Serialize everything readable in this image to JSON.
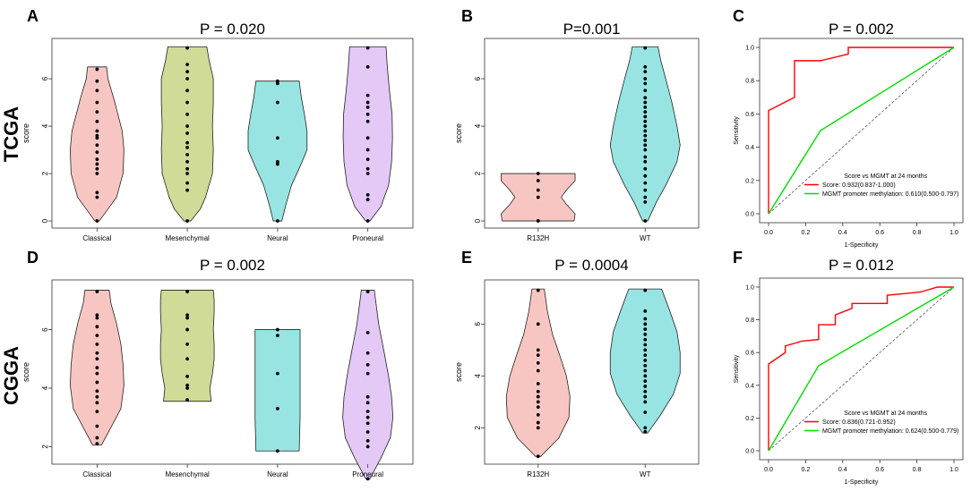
{
  "row_labels": [
    "TCGA",
    "CGGA"
  ],
  "colors": {
    "Classical": "#f8c6c2",
    "Mesenchymal": "#cfdb96",
    "Neural": "#98e4e3",
    "Proneural": "#e4c8f6",
    "R132H": "#f8c6c2",
    "WT": "#98e4e3",
    "roc_score": "#ff0000",
    "roc_mgmt": "#00dd00",
    "diagonal": "#555555"
  },
  "chart_data": [
    {
      "panel": "A",
      "type": "violin",
      "title": "P = 0.020",
      "ylabel": "score",
      "ylim": [
        -0.3,
        7.7
      ],
      "yticks": [
        0,
        2,
        4,
        6
      ],
      "groups": [
        {
          "name": "Classical",
          "min": 0,
          "max": 6.5,
          "shape": [
            [
              0,
              0.05
            ],
            [
              0.5,
              0.25
            ],
            [
              1,
              0.45
            ],
            [
              2,
              0.6
            ],
            [
              3,
              0.62
            ],
            [
              3.8,
              0.58
            ],
            [
              4.5,
              0.48
            ],
            [
              5.2,
              0.38
            ],
            [
              6,
              0.25
            ],
            [
              6.5,
              0.22
            ]
          ],
          "points": [
            0,
            1.0,
            1.2,
            2.0,
            2.2,
            2.4,
            2.6,
            2.9,
            3.2,
            3.5,
            3.6,
            3.8,
            4.2,
            4.6,
            5.0,
            5.5,
            5.9,
            6.4
          ]
        },
        {
          "name": "Mesenchymal",
          "min": 0,
          "max": 7.35,
          "shape": [
            [
              0,
              0.08
            ],
            [
              0.5,
              0.3
            ],
            [
              1,
              0.42
            ],
            [
              2,
              0.58
            ],
            [
              3,
              0.6
            ],
            [
              4,
              0.58
            ],
            [
              5,
              0.6
            ],
            [
              6,
              0.6
            ],
            [
              6.8,
              0.5
            ],
            [
              7.35,
              0.45
            ]
          ],
          "points": [
            0,
            1.3,
            1.6,
            2.0,
            2.2,
            2.5,
            2.8,
            3.1,
            3.3,
            3.7,
            4.0,
            4.5,
            5.0,
            5.5,
            6.0,
            6.3,
            6.6,
            7.3
          ]
        },
        {
          "name": "Neural",
          "min": 0,
          "max": 5.9,
          "shape": [
            [
              0,
              0.1
            ],
            [
              0.6,
              0.18
            ],
            [
              1.5,
              0.32
            ],
            [
              2.3,
              0.52
            ],
            [
              3,
              0.68
            ],
            [
              3.8,
              0.68
            ],
            [
              4.5,
              0.62
            ],
            [
              5.2,
              0.55
            ],
            [
              5.9,
              0.5
            ]
          ],
          "points": [
            0,
            2.4,
            2.5,
            3.5,
            5.0,
            5.8,
            5.9
          ]
        },
        {
          "name": "Proneural",
          "min": 0,
          "max": 7.35,
          "shape": [
            [
              0,
              0.05
            ],
            [
              0.6,
              0.3
            ],
            [
              1.5,
              0.48
            ],
            [
              2.5,
              0.55
            ],
            [
              3.5,
              0.57
            ],
            [
              4.5,
              0.56
            ],
            [
              5.5,
              0.5
            ],
            [
              6.5,
              0.45
            ],
            [
              7.35,
              0.42
            ]
          ],
          "points": [
            0,
            0.9,
            1.1,
            2.0,
            2.2,
            2.6,
            3.0,
            3.5,
            4.2,
            4.5,
            4.8,
            5.0,
            5.3,
            6.5,
            7.3
          ]
        }
      ]
    },
    {
      "panel": "B",
      "type": "violin",
      "title": "P=0.001",
      "ylabel": "score",
      "ylim": [
        -0.3,
        7.7
      ],
      "yticks": [
        0,
        2,
        4,
        6
      ],
      "groups": [
        {
          "name": "R132H",
          "min": 0,
          "max": 2.0,
          "shape": [
            [
              0,
              0.7
            ],
            [
              0.3,
              0.72
            ],
            [
              0.7,
              0.55
            ],
            [
              1,
              0.45
            ],
            [
              1.3,
              0.55
            ],
            [
              1.7,
              0.72
            ],
            [
              2.0,
              0.72
            ]
          ],
          "points": [
            0,
            0,
            1.0,
            1.3,
            1.7,
            2.0
          ]
        },
        {
          "name": "WT",
          "min": 0,
          "max": 7.35,
          "shape": [
            [
              0,
              0.05
            ],
            [
              0.8,
              0.22
            ],
            [
              1.5,
              0.4
            ],
            [
              2.5,
              0.62
            ],
            [
              3.2,
              0.68
            ],
            [
              4,
              0.62
            ],
            [
              5,
              0.52
            ],
            [
              6,
              0.4
            ],
            [
              6.8,
              0.3
            ],
            [
              7.35,
              0.25
            ]
          ],
          "points": [
            0,
            0.8,
            1.0,
            1.3,
            1.6,
            1.9,
            2.2,
            2.5,
            2.7,
            3.0,
            3.2,
            3.4,
            3.6,
            3.8,
            4.0,
            4.2,
            4.4,
            4.6,
            4.8,
            5.0,
            5.2,
            5.5,
            5.8,
            6.0,
            6.3,
            6.5,
            7.3
          ]
        }
      ]
    },
    {
      "panel": "C",
      "type": "line",
      "title": "P = 0.002",
      "xlabel": "1-Specificity",
      "ylabel": "Sensitivity",
      "xlim": [
        0,
        1
      ],
      "ylim": [
        0,
        1
      ],
      "ticks": [
        0.0,
        0.2,
        0.4,
        0.6,
        0.8,
        1.0
      ],
      "tick_labels": [
        "0.0",
        "0.2",
        "0.4",
        "0.6",
        "0.8",
        "1.0"
      ],
      "legend_title": "Score vs MGMT at 24 months",
      "series": [
        {
          "name": "Score: 0.932(0.837-1.000)",
          "color_key": "roc_score",
          "x": [
            0,
            0,
            0.14,
            0.14,
            0.28,
            0.43,
            0.43,
            1.0
          ],
          "y": [
            0,
            0.62,
            0.7,
            0.92,
            0.92,
            0.96,
            1.0,
            1.0
          ]
        },
        {
          "name": "MGMT promoter methylation: 0.610(0.500-0.797)",
          "color_key": "roc_mgmt",
          "x": [
            0,
            0.28,
            1.0
          ],
          "y": [
            0,
            0.5,
            1.0
          ]
        }
      ]
    },
    {
      "panel": "D",
      "type": "violin",
      "title": "P = 0.002",
      "ylabel": "score",
      "ylim": [
        1.4,
        7.7
      ],
      "yticks": [
        2,
        4,
        6
      ],
      "groups": [
        {
          "name": "Classical",
          "min": 2.05,
          "max": 7.35,
          "shape": [
            [
              2.05,
              0.1
            ],
            [
              2.6,
              0.3
            ],
            [
              3.3,
              0.55
            ],
            [
              4.1,
              0.62
            ],
            [
              4.8,
              0.6
            ],
            [
              5.5,
              0.55
            ],
            [
              6.2,
              0.45
            ],
            [
              6.9,
              0.32
            ],
            [
              7.35,
              0.28
            ]
          ],
          "points": [
            2.1,
            2.3,
            2.7,
            3.2,
            3.5,
            3.7,
            3.9,
            4.2,
            4.5,
            4.7,
            5.0,
            5.2,
            5.5,
            5.8,
            6.1,
            6.4,
            6.5,
            7.3
          ]
        },
        {
          "name": "Mesenchymal",
          "min": 3.55,
          "max": 7.35,
          "shape": [
            [
              3.55,
              0.55
            ],
            [
              4,
              0.52
            ],
            [
              4.5,
              0.58
            ],
            [
              5,
              0.62
            ],
            [
              5.5,
              0.62
            ],
            [
              6,
              0.6
            ],
            [
              6.6,
              0.62
            ],
            [
              7,
              0.62
            ],
            [
              7.35,
              0.6
            ]
          ],
          "points": [
            3.6,
            4.0,
            4.1,
            4.4,
            5.0,
            5.5,
            6.0,
            6.4,
            6.5,
            7.3
          ]
        },
        {
          "name": "Neural",
          "min": 1.85,
          "max": 6.0,
          "shape": [
            [
              1.85,
              0.5
            ],
            [
              3,
              0.52
            ],
            [
              4,
              0.52
            ],
            [
              5,
              0.52
            ],
            [
              6,
              0.52
            ]
          ],
          "points": [
            1.85,
            3.3,
            4.5,
            5.8,
            6.0
          ]
        },
        {
          "name": "Proneural",
          "min": 0.9,
          "max": 7.35,
          "shape": [
            [
              0.9,
              0.05
            ],
            [
              1.6,
              0.3
            ],
            [
              2.3,
              0.52
            ],
            [
              3,
              0.58
            ],
            [
              3.7,
              0.55
            ],
            [
              4.4,
              0.48
            ],
            [
              5.2,
              0.38
            ],
            [
              6.2,
              0.25
            ],
            [
              7,
              0.18
            ],
            [
              7.35,
              0.15
            ]
          ],
          "points": [
            0.9,
            2.0,
            2.2,
            2.5,
            2.8,
            3.0,
            3.2,
            3.5,
            3.7,
            4.5,
            4.8,
            5.2,
            5.9,
            7.3
          ]
        }
      ]
    },
    {
      "panel": "E",
      "type": "violin",
      "title": "P = 0.0004",
      "ylabel": "score",
      "ylim": [
        0.6,
        7.7
      ],
      "yticks": [
        2,
        4,
        6
      ],
      "groups": [
        {
          "name": "R132H",
          "min": 0.9,
          "max": 7.35,
          "shape": [
            [
              0.9,
              0.05
            ],
            [
              1.6,
              0.4
            ],
            [
              2.4,
              0.6
            ],
            [
              3.2,
              0.62
            ],
            [
              4,
              0.55
            ],
            [
              4.8,
              0.42
            ],
            [
              5.6,
              0.28
            ],
            [
              6.5,
              0.18
            ],
            [
              7.35,
              0.12
            ]
          ],
          "points": [
            0.9,
            2.0,
            2.2,
            2.5,
            2.8,
            3.0,
            3.2,
            3.4,
            3.7,
            4.2,
            4.5,
            4.8,
            5.0,
            6.0,
            7.3
          ]
        },
        {
          "name": "WT",
          "min": 1.8,
          "max": 7.35,
          "shape": [
            [
              1.8,
              0.05
            ],
            [
              2.5,
              0.3
            ],
            [
              3.3,
              0.55
            ],
            [
              4.1,
              0.68
            ],
            [
              4.9,
              0.68
            ],
            [
              5.7,
              0.62
            ],
            [
              6.5,
              0.48
            ],
            [
              7.35,
              0.32
            ]
          ],
          "points": [
            1.85,
            2.0,
            2.6,
            3.0,
            3.2,
            3.4,
            3.6,
            3.8,
            4.0,
            4.2,
            4.4,
            4.6,
            4.8,
            5.0,
            5.2,
            5.4,
            5.6,
            5.8,
            6.0,
            6.2,
            6.5,
            7.3
          ]
        }
      ]
    },
    {
      "panel": "F",
      "type": "line",
      "title": "P = 0.012",
      "xlabel": "1-Specificity",
      "ylabel": "Sensitivity",
      "xlim": [
        0,
        1
      ],
      "ylim": [
        0,
        1
      ],
      "ticks": [
        0.0,
        0.2,
        0.4,
        0.6,
        0.8,
        1.0
      ],
      "tick_labels": [
        "0.0",
        "0.2",
        "0.4",
        "0.6",
        "0.8",
        "1.0"
      ],
      "legend_title": "Score vs MGMT at 24 months",
      "series": [
        {
          "name": "Score: 0.836(0.721-0.952)",
          "color_key": "roc_score",
          "x": [
            0,
            0,
            0.09,
            0.09,
            0.18,
            0.27,
            0.27,
            0.36,
            0.36,
            0.45,
            0.45,
            0.55,
            0.64,
            0.64,
            0.82,
            0.91,
            1.0
          ],
          "y": [
            0,
            0.53,
            0.6,
            0.64,
            0.67,
            0.68,
            0.77,
            0.77,
            0.83,
            0.87,
            0.9,
            0.9,
            0.9,
            0.95,
            0.97,
            1.0,
            1.0
          ]
        },
        {
          "name": "MGMT promoter methylation: 0.624(0.500-0.779)",
          "color_key": "roc_mgmt",
          "x": [
            0,
            0.27,
            1.0
          ],
          "y": [
            0,
            0.52,
            1.0
          ]
        }
      ]
    }
  ]
}
